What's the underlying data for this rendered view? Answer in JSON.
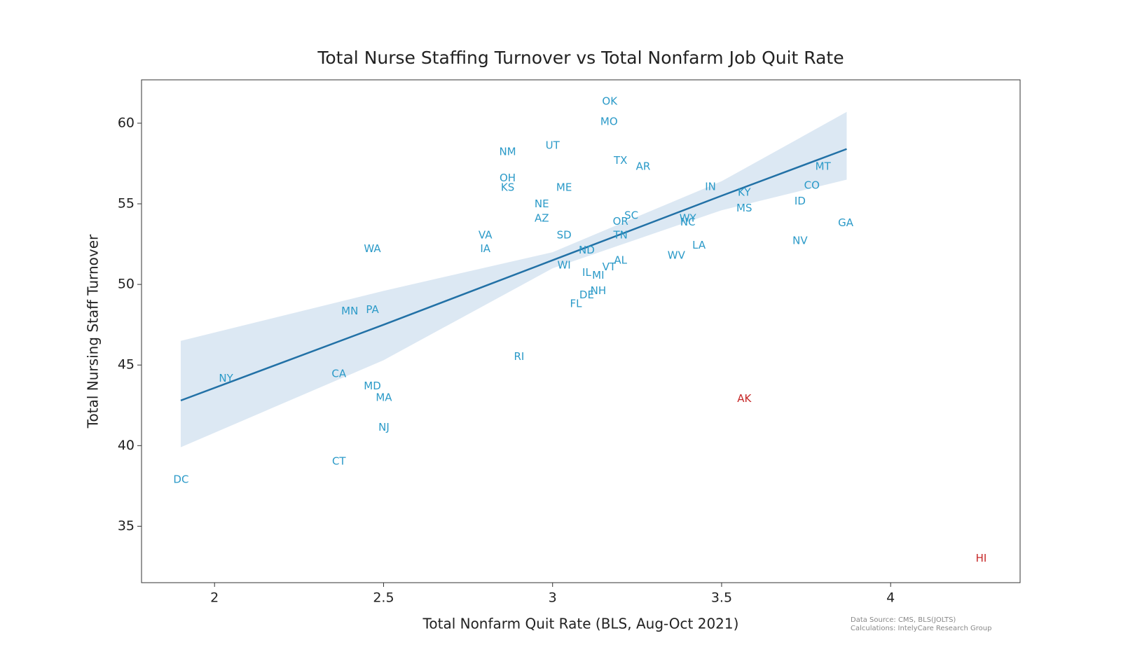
{
  "chart_data": {
    "type": "scatter",
    "title": "Total Nurse Staffing Turnover vs Total Nonfarm Job Quit Rate",
    "x_label": "Total Nonfarm Quit Rate (BLS, Aug-Oct 2021)",
    "y_label": "Total Nursing Staff Turnover",
    "notes": [
      "Data Source: CMS, BLS(JOLTS)",
      "Calculations: IntelyCare Research Group"
    ],
    "xlim": [
      1.784,
      4.383
    ],
    "ylim": [
      31.5,
      62.69
    ],
    "xticks": [
      2,
      2.5,
      3,
      3.5,
      4
    ],
    "yticks": [
      35,
      40,
      45,
      50,
      55,
      60
    ],
    "series": [
      {
        "color": "#2b9ac8",
        "labels": [
          "OK",
          "MO",
          "UT",
          "NM",
          "TX",
          "AR",
          "MT",
          "OH",
          "KS",
          "ME",
          "IN",
          "CO",
          "KY",
          "ID",
          "NE",
          "MS",
          "SC",
          "AZ",
          "WY",
          "NC",
          "OR",
          "GA",
          "VA",
          "SD",
          "TN",
          "NV",
          "LA",
          "WA",
          "IA",
          "ND",
          "WV",
          "AL",
          "WI",
          "VT",
          "IL",
          "MI",
          "NH",
          "DE",
          "FL",
          "PA",
          "MN",
          "RI",
          "CA",
          "NY",
          "MD",
          "MA",
          "NJ",
          "CT",
          "DC"
        ],
        "x": [
          3.169,
          3.167,
          3.0,
          2.867,
          3.201,
          3.268,
          3.8,
          2.867,
          2.867,
          3.034,
          3.467,
          3.767,
          3.567,
          3.732,
          2.968,
          3.567,
          3.233,
          2.968,
          3.4,
          3.4,
          3.201,
          3.867,
          2.801,
          3.034,
          3.201,
          3.732,
          3.433,
          2.467,
          2.801,
          3.101,
          3.366,
          3.201,
          3.034,
          3.167,
          3.101,
          3.135,
          3.135,
          3.101,
          3.069,
          2.467,
          2.4,
          2.901,
          2.368,
          2.034,
          2.467,
          2.501,
          2.501,
          2.368,
          1.901
        ],
        "y": [
          61.35,
          60.09,
          58.61,
          58.21,
          57.67,
          57.31,
          57.31,
          56.59,
          56.01,
          56.01,
          56.05,
          56.14,
          55.7,
          55.16,
          54.98,
          54.71,
          54.26,
          54.08,
          54.08,
          53.86,
          53.9,
          53.81,
          53.05,
          53.05,
          53.05,
          52.69,
          52.42,
          52.2,
          52.2,
          52.11,
          51.79,
          51.48,
          51.17,
          51.08,
          50.72,
          50.54,
          49.6,
          49.33,
          48.79,
          48.43,
          48.34,
          45.52,
          44.44,
          44.17,
          43.68,
          42.96,
          41.12,
          39.01,
          37.89
        ]
      },
      {
        "color": "#c62828",
        "labels": [
          "AK",
          "HI"
        ],
        "x": [
          3.567,
          4.268
        ],
        "y": [
          42.91,
          33.0
        ]
      }
    ],
    "trend": {
      "color": "#2271a6",
      "band_color": "#dce8f3",
      "x": [
        1.9,
        2.5,
        3.0,
        3.5,
        3.87
      ],
      "y": [
        42.8,
        47.5,
        51.5,
        55.5,
        58.4
      ],
      "lower": [
        39.9,
        45.3,
        51.0,
        54.6,
        56.5
      ],
      "upper": [
        46.5,
        49.6,
        52.0,
        56.4,
        60.7
      ]
    }
  }
}
